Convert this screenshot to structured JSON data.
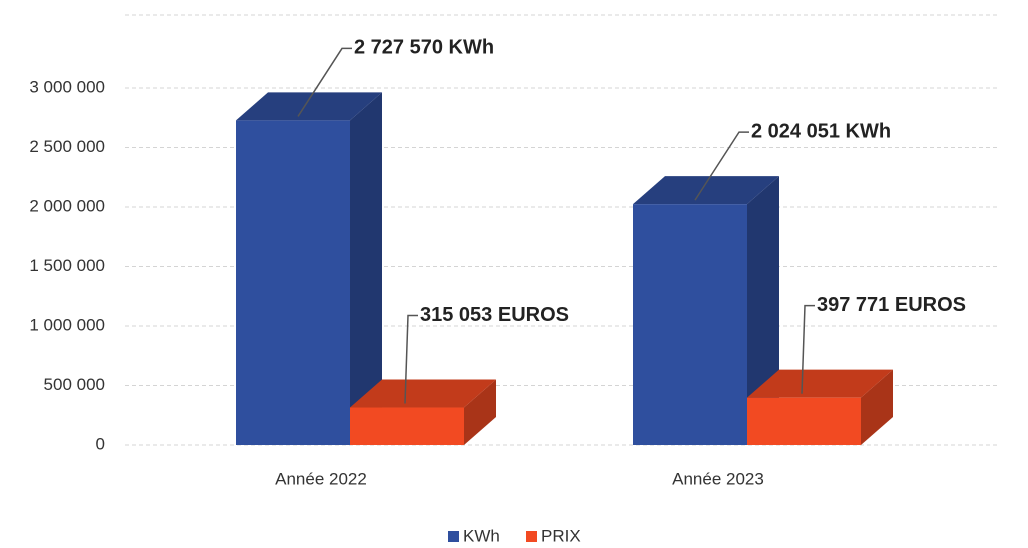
{
  "chart_data": {
    "type": "bar3d",
    "categories": [
      "Année 2022",
      "Année 2023"
    ],
    "series": [
      {
        "name": "KWh",
        "color": "#2f4f9e",
        "values": [
          2727570,
          2024051
        ],
        "value_labels": [
          "2 727 570 KWh",
          "2 024 051 KWh"
        ]
      },
      {
        "name": "PRIX",
        "color": "#f24a22",
        "values": [
          315053,
          397771
        ],
        "value_labels": [
          "315 053 EUROS",
          "397 771 EUROS"
        ]
      }
    ],
    "ylim": [
      0,
      3500000
    ],
    "yticks": [
      0,
      {
        "value": 500000,
        "label": "500 000"
      },
      {
        "value": 1000000,
        "label": "1 000 000"
      },
      {
        "value": 1500000,
        "label": "1 500 000"
      },
      {
        "value": 2000000,
        "label": "2 000 000"
      },
      {
        "value": 2500000,
        "label": "2 500 000"
      },
      {
        "value": 3000000,
        "label": "3 000 000"
      }
    ],
    "grid": true,
    "legend": "bottom"
  }
}
